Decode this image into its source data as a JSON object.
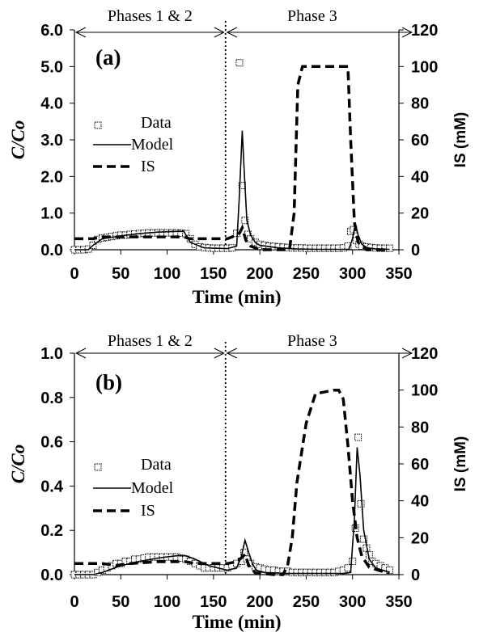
{
  "chart_data": [
    {
      "type": "line",
      "panel_label": "(a)",
      "xlabel": "Time (min)",
      "ylabel_left": "C/Co",
      "ylabel_right": "IS (mM)",
      "xlim": [
        0,
        350
      ],
      "ylim_left": [
        0,
        6
      ],
      "ylim_right": [
        0,
        120
      ],
      "x_ticks": [
        "0",
        "50",
        "100",
        "150",
        "200",
        "250",
        "300",
        "350"
      ],
      "y_left_ticks": [
        "0.0",
        "1.0",
        "2.0",
        "3.0",
        "4.0",
        "5.0",
        "6.0"
      ],
      "y_right_ticks": [
        "0",
        "20",
        "40",
        "60",
        "80",
        "100",
        "120"
      ],
      "phase_divider_x": 163,
      "phase_labels": [
        "Phases 1 & 2",
        "Phase 3"
      ],
      "legend": [
        "Data",
        "Model",
        "IS"
      ],
      "legend_position": "left-middle",
      "series": [
        {
          "name": "Data",
          "style": "open-square-marker",
          "axis": "left",
          "x": [
            0,
            5,
            10,
            15,
            20,
            25,
            30,
            35,
            40,
            45,
            50,
            55,
            60,
            65,
            70,
            75,
            80,
            85,
            90,
            95,
            100,
            105,
            110,
            115,
            120,
            125,
            130,
            135,
            140,
            145,
            150,
            155,
            160,
            165,
            170,
            175,
            178,
            181,
            184,
            187,
            190,
            195,
            200,
            205,
            210,
            215,
            220,
            225,
            230,
            235,
            240,
            245,
            250,
            255,
            260,
            265,
            270,
            275,
            280,
            285,
            290,
            295,
            298,
            301,
            304,
            307,
            310,
            315,
            320,
            325,
            330,
            335,
            340
          ],
          "values": [
            0.0,
            0.0,
            0.0,
            0.02,
            0.12,
            0.28,
            0.32,
            0.34,
            0.36,
            0.38,
            0.4,
            0.4,
            0.42,
            0.43,
            0.44,
            0.45,
            0.46,
            0.46,
            0.46,
            0.46,
            0.46,
            0.46,
            0.46,
            0.45,
            0.44,
            0.3,
            0.15,
            0.08,
            0.06,
            0.05,
            0.04,
            0.04,
            0.04,
            0.04,
            0.05,
            0.45,
            5.1,
            1.75,
            0.8,
            0.42,
            0.3,
            0.2,
            0.15,
            0.12,
            0.1,
            0.09,
            0.08,
            0.07,
            0.06,
            0.05,
            0.05,
            0.05,
            0.04,
            0.04,
            0.04,
            0.04,
            0.04,
            0.04,
            0.04,
            0.04,
            0.05,
            0.1,
            0.5,
            0.55,
            0.25,
            0.15,
            0.1,
            0.08,
            0.06,
            0.05,
            0.04,
            0.04,
            0.04
          ]
        },
        {
          "name": "Model",
          "style": "solid-line",
          "axis": "left",
          "x": [
            0,
            15,
            20,
            30,
            50,
            70,
            90,
            110,
            118,
            125,
            140,
            165,
            175,
            178,
            181,
            183,
            186,
            190,
            195,
            200,
            220,
            240,
            260,
            280,
            296,
            300,
            303,
            306,
            310,
            316,
            325,
            340
          ],
          "values": [
            0.0,
            0.0,
            0.12,
            0.3,
            0.38,
            0.44,
            0.48,
            0.5,
            0.5,
            0.2,
            0.05,
            0.03,
            0.1,
            1.5,
            3.25,
            2.2,
            0.8,
            0.4,
            0.2,
            0.12,
            0.05,
            0.02,
            0.01,
            0.01,
            0.01,
            0.3,
            0.72,
            0.4,
            0.15,
            0.05,
            0.02,
            0.01
          ]
        },
        {
          "name": "IS",
          "style": "dashed-line",
          "axis": "right",
          "x": [
            0,
            20,
            30,
            60,
            100,
            118,
            125,
            150,
            165,
            170,
            178,
            181,
            185,
            190,
            200,
            225,
            232,
            237,
            241,
            246,
            270,
            290,
            295,
            298,
            302,
            306,
            315,
            340
          ],
          "values": [
            6,
            6,
            7,
            7,
            7,
            7,
            6,
            6,
            6,
            7,
            9,
            12,
            5,
            2,
            0,
            0,
            0,
            20,
            90,
            100,
            100,
            100,
            100,
            60,
            15,
            4,
            0,
            0
          ]
        }
      ]
    },
    {
      "type": "line",
      "panel_label": "(b)",
      "xlabel": "Time (min)",
      "ylabel_left": "C/Co",
      "ylabel_right": "IS (mM)",
      "xlim": [
        0,
        350
      ],
      "ylim_left": [
        0,
        1
      ],
      "ylim_right": [
        0,
        120
      ],
      "x_ticks": [
        "0",
        "50",
        "100",
        "150",
        "200",
        "250",
        "300",
        "350"
      ],
      "y_left_ticks": [
        "0.0",
        "0.2",
        "0.4",
        "0.6",
        "0.8",
        "1.0"
      ],
      "y_right_ticks": [
        "0",
        "20",
        "40",
        "60",
        "80",
        "100",
        "120"
      ],
      "phase_divider_x": 163,
      "phase_labels": [
        "Phases 1 & 2",
        "Phase 3"
      ],
      "legend": [
        "Data",
        "Model",
        "IS"
      ],
      "legend_position": "left-middle",
      "series": [
        {
          "name": "Data",
          "style": "open-square-marker",
          "axis": "left",
          "x": [
            0,
            5,
            10,
            15,
            20,
            25,
            30,
            35,
            40,
            45,
            50,
            55,
            60,
            65,
            70,
            75,
            80,
            85,
            90,
            95,
            100,
            105,
            110,
            115,
            120,
            125,
            130,
            135,
            140,
            145,
            150,
            155,
            160,
            165,
            170,
            175,
            180,
            183,
            186,
            190,
            195,
            200,
            205,
            210,
            215,
            220,
            225,
            230,
            235,
            240,
            245,
            250,
            255,
            260,
            265,
            270,
            275,
            280,
            285,
            290,
            295,
            300,
            303,
            306,
            309,
            312,
            315,
            318,
            321,
            325,
            330,
            335,
            340
          ],
          "values": [
            0.0,
            0.0,
            0.0,
            0.0,
            0.0,
            0.01,
            0.02,
            0.03,
            0.04,
            0.05,
            0.05,
            0.06,
            0.06,
            0.07,
            0.07,
            0.075,
            0.08,
            0.08,
            0.08,
            0.08,
            0.08,
            0.08,
            0.08,
            0.075,
            0.07,
            0.06,
            0.05,
            0.04,
            0.03,
            0.03,
            0.03,
            0.03,
            0.03,
            0.03,
            0.04,
            0.05,
            0.06,
            0.1,
            0.07,
            0.05,
            0.035,
            0.03,
            0.025,
            0.02,
            0.02,
            0.015,
            0.015,
            0.015,
            0.01,
            0.01,
            0.01,
            0.01,
            0.01,
            0.01,
            0.01,
            0.01,
            0.01,
            0.01,
            0.015,
            0.02,
            0.03,
            0.06,
            0.21,
            0.62,
            0.32,
            0.16,
            0.12,
            0.09,
            0.06,
            0.05,
            0.04,
            0.03,
            0.02
          ]
        },
        {
          "name": "Model",
          "style": "solid-line",
          "axis": "left",
          "x": [
            0,
            20,
            30,
            50,
            70,
            90,
            110,
            120,
            130,
            145,
            165,
            175,
            180,
            184,
            188,
            192,
            196,
            205,
            230,
            260,
            290,
            298,
            302,
            305,
            308,
            312,
            318,
            325,
            340
          ],
          "values": [
            0.0,
            0.0,
            0.01,
            0.04,
            0.06,
            0.075,
            0.085,
            0.085,
            0.07,
            0.04,
            0.02,
            0.03,
            0.08,
            0.155,
            0.1,
            0.05,
            0.02,
            0.01,
            0.005,
            0.005,
            0.005,
            0.01,
            0.25,
            0.575,
            0.45,
            0.2,
            0.07,
            0.03,
            0.01
          ]
        },
        {
          "name": "IS",
          "style": "dashed-line",
          "axis": "right",
          "x": [
            0,
            30,
            45,
            60,
            90,
            110,
            120,
            130,
            150,
            165,
            175,
            180,
            184,
            188,
            195,
            215,
            225,
            230,
            235,
            240,
            250,
            260,
            280,
            285,
            290,
            295,
            300,
            305,
            310,
            318,
            330,
            340
          ],
          "values": [
            6,
            6,
            5,
            6,
            7,
            7,
            7,
            6,
            6,
            6,
            7,
            9,
            11,
            5,
            1,
            0,
            0,
            5,
            20,
            50,
            82,
            98,
            100,
            100,
            95,
            70,
            40,
            20,
            10,
            4,
            2,
            1
          ]
        }
      ]
    }
  ]
}
